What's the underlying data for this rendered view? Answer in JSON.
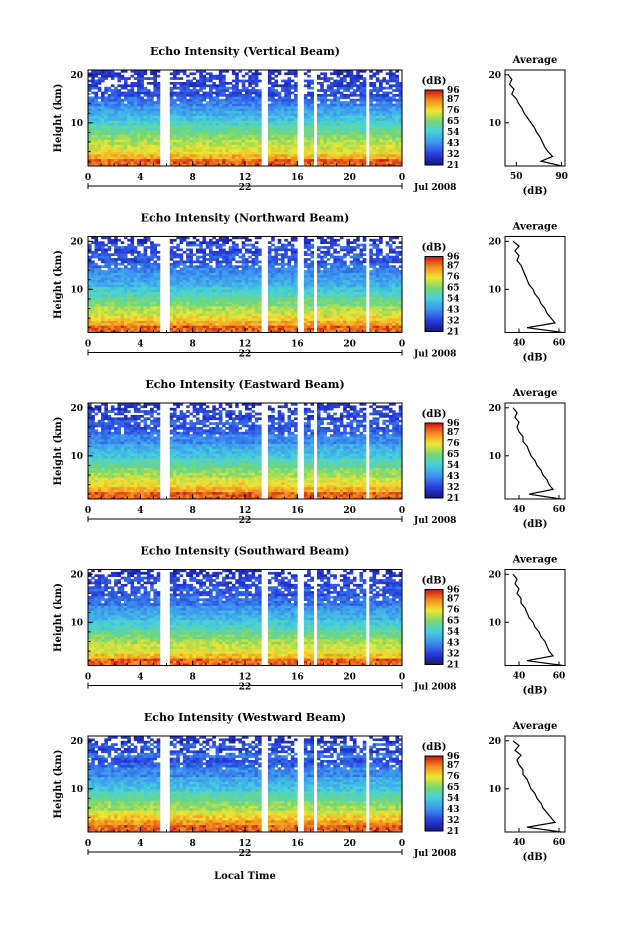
{
  "figure": {
    "xlabel": "Local Time",
    "date_label": "Jul 2008",
    "day_label": "22",
    "colorbar_label": "(dB)",
    "average_title": "Average",
    "average_xlabel": "(dB)",
    "ylabel": "Height (km)"
  },
  "chart_data": [
    {
      "type": "heatmap",
      "title": "Echo Intensity (Vertical Beam)",
      "xlabel": "",
      "ylabel": "Height (km)",
      "x_ticks": [
        "0",
        "4",
        "8",
        "12",
        "16",
        "20",
        "0"
      ],
      "xlim": [
        0,
        24
      ],
      "y_ticks": [
        "10",
        "20"
      ],
      "ylim": [
        1,
        21
      ],
      "colorbar_ticks": [
        "96",
        "87",
        "76",
        "65",
        "54",
        "43",
        "32",
        "21"
      ],
      "colorbar_range": [
        21,
        96
      ],
      "data_gaps_hours": [
        [
          5.6,
          6.2
        ],
        [
          13.2,
          13.7
        ],
        [
          15.9,
          16.4
        ],
        [
          17.3,
          17.6
        ],
        [
          21.3,
          21.6
        ]
      ],
      "average_profile": {
        "x_ticks": [
          "50",
          "90"
        ],
        "xlim": [
          40,
          93
        ],
        "height_km": [
          1,
          2,
          3,
          4,
          5,
          6,
          7,
          8,
          9,
          10,
          11,
          12,
          13,
          14,
          15,
          16,
          17,
          18,
          19,
          20
        ],
        "db": [
          90,
          72,
          82,
          78,
          75,
          73,
          71,
          68,
          66,
          63,
          60,
          57,
          55,
          52,
          50,
          46,
          48,
          44,
          46,
          43
        ]
      }
    },
    {
      "type": "heatmap",
      "title": "Echo Intensity (Northward Beam)",
      "xlabel": "",
      "ylabel": "Height (km)",
      "x_ticks": [
        "0",
        "4",
        "8",
        "12",
        "16",
        "20",
        "0"
      ],
      "xlim": [
        0,
        24
      ],
      "y_ticks": [
        "10",
        "20"
      ],
      "ylim": [
        1,
        21
      ],
      "colorbar_ticks": [
        "96",
        "87",
        "76",
        "65",
        "54",
        "43",
        "32",
        "21"
      ],
      "colorbar_range": [
        21,
        96
      ],
      "data_gaps_hours": [
        [
          5.6,
          6.2
        ],
        [
          13.2,
          13.7
        ],
        [
          15.9,
          16.4
        ],
        [
          17.3,
          17.6
        ],
        [
          21.3,
          21.6
        ]
      ],
      "average_profile": {
        "x_ticks": [
          "40",
          "60"
        ],
        "xlim": [
          33,
          63
        ],
        "height_km": [
          1,
          2,
          3,
          4,
          5,
          6,
          7,
          8,
          9,
          10,
          11,
          12,
          13,
          14,
          15,
          16,
          17,
          18,
          19,
          20
        ],
        "db": [
          62,
          44,
          58,
          56,
          54,
          53,
          51,
          50,
          48,
          47,
          45,
          44,
          43,
          42,
          41,
          39,
          40,
          38,
          40,
          37
        ]
      }
    },
    {
      "type": "heatmap",
      "title": "Echo Intensity (Eastward Beam)",
      "xlabel": "",
      "ylabel": "Height (km)",
      "x_ticks": [
        "0",
        "4",
        "8",
        "12",
        "16",
        "20",
        "0"
      ],
      "xlim": [
        0,
        24
      ],
      "y_ticks": [
        "10",
        "20"
      ],
      "ylim": [
        1,
        21
      ],
      "colorbar_ticks": [
        "96",
        "87",
        "76",
        "65",
        "54",
        "43",
        "32",
        "21"
      ],
      "colorbar_range": [
        21,
        96
      ],
      "data_gaps_hours": [
        [
          5.6,
          6.2
        ],
        [
          13.2,
          13.7
        ],
        [
          15.9,
          16.4
        ],
        [
          17.3,
          17.6
        ],
        [
          21.3,
          21.6
        ]
      ],
      "average_profile": {
        "x_ticks": [
          "40",
          "60"
        ],
        "xlim": [
          33,
          63
        ],
        "height_km": [
          1,
          2,
          3,
          4,
          5,
          6,
          7,
          8,
          9,
          10,
          11,
          12,
          13,
          14,
          15,
          16,
          17,
          18,
          19,
          20
        ],
        "db": [
          61,
          45,
          57,
          55,
          54,
          52,
          51,
          49,
          48,
          46,
          45,
          44,
          42,
          42,
          40,
          39,
          40,
          38,
          39,
          37
        ]
      }
    },
    {
      "type": "heatmap",
      "title": "Echo Intensity (Southward Beam)",
      "xlabel": "",
      "ylabel": "Height (km)",
      "x_ticks": [
        "0",
        "4",
        "8",
        "12",
        "16",
        "20",
        "0"
      ],
      "xlim": [
        0,
        24
      ],
      "y_ticks": [
        "10",
        "20"
      ],
      "ylim": [
        1,
        21
      ],
      "colorbar_ticks": [
        "96",
        "87",
        "76",
        "65",
        "54",
        "43",
        "32",
        "21"
      ],
      "colorbar_range": [
        21,
        96
      ],
      "data_gaps_hours": [
        [
          5.6,
          6.2
        ],
        [
          13.2,
          13.7
        ],
        [
          15.9,
          16.4
        ],
        [
          17.3,
          17.6
        ],
        [
          21.3,
          21.6
        ]
      ],
      "average_profile": {
        "x_ticks": [
          "40",
          "60"
        ],
        "xlim": [
          33,
          63
        ],
        "height_km": [
          1,
          2,
          3,
          4,
          5,
          6,
          7,
          8,
          9,
          10,
          11,
          12,
          13,
          14,
          15,
          16,
          17,
          18,
          19,
          20
        ],
        "db": [
          62,
          44,
          57,
          55,
          54,
          53,
          51,
          50,
          48,
          47,
          45,
          44,
          43,
          41,
          41,
          39,
          40,
          38,
          39,
          37
        ]
      }
    },
    {
      "type": "heatmap",
      "title": "Echo Intensity (Westward Beam)",
      "xlabel": "Local Time",
      "ylabel": "Height (km)",
      "x_ticks": [
        "0",
        "4",
        "8",
        "12",
        "16",
        "20",
        "0"
      ],
      "xlim": [
        0,
        24
      ],
      "y_ticks": [
        "10",
        "20"
      ],
      "ylim": [
        1,
        21
      ],
      "colorbar_ticks": [
        "96",
        "87",
        "76",
        "65",
        "54",
        "43",
        "32",
        "21"
      ],
      "colorbar_range": [
        21,
        96
      ],
      "data_gaps_hours": [
        [
          5.6,
          6.2
        ],
        [
          13.2,
          13.7
        ],
        [
          15.9,
          16.4
        ],
        [
          17.3,
          17.6
        ],
        [
          21.3,
          21.6
        ]
      ],
      "average_profile": {
        "x_ticks": [
          "40",
          "60"
        ],
        "xlim": [
          33,
          63
        ],
        "height_km": [
          1,
          2,
          3,
          4,
          5,
          6,
          7,
          8,
          9,
          10,
          11,
          12,
          13,
          14,
          15,
          16,
          17,
          18,
          19,
          20
        ],
        "db": [
          61,
          44,
          58,
          56,
          54,
          52,
          51,
          49,
          48,
          46,
          45,
          44,
          42,
          42,
          40,
          39,
          41,
          38,
          40,
          37
        ]
      }
    }
  ]
}
